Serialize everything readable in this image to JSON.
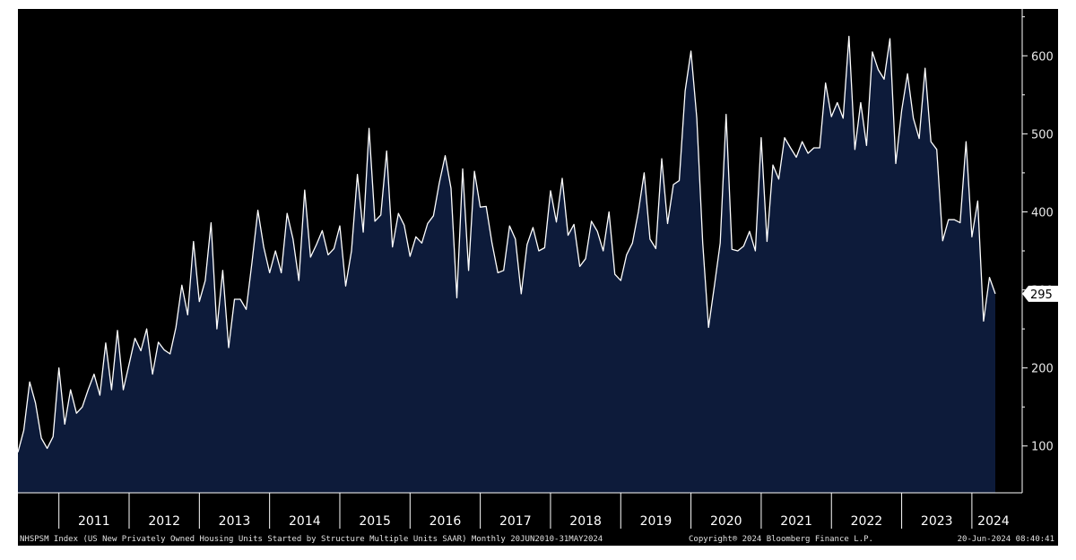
{
  "chart_data": {
    "type": "area",
    "title": "",
    "xlabel": "",
    "ylabel": "",
    "ylim": [
      40,
      660
    ],
    "yticks": [
      100,
      200,
      300,
      400,
      500,
      600
    ],
    "x_range": [
      "2010-06",
      "2024-05"
    ],
    "x_year_labels": [
      "2011",
      "2012",
      "2013",
      "2014",
      "2015",
      "2016",
      "2017",
      "2018",
      "2019",
      "2020",
      "2021",
      "2022",
      "2023",
      "2024"
    ],
    "last_value_label": "295",
    "colors": {
      "background": "#000000",
      "fill": "#0d1b3a",
      "line": "#ffffff",
      "axis": "#ffffff"
    },
    "series": [
      {
        "x": [
          "2010-06",
          "2010-07",
          "2010-08",
          "2010-09",
          "2010-10",
          "2010-11",
          "2010-12",
          "2011-01",
          "2011-02",
          "2011-03",
          "2011-04",
          "2011-05",
          "2011-06",
          "2011-07",
          "2011-08",
          "2011-09",
          "2011-10",
          "2011-11",
          "2011-12",
          "2012-01",
          "2012-02",
          "2012-03",
          "2012-04",
          "2012-05",
          "2012-06",
          "2012-07",
          "2012-08",
          "2012-09",
          "2012-10",
          "2012-11",
          "2012-12",
          "2013-01",
          "2013-02",
          "2013-03",
          "2013-04",
          "2013-05",
          "2013-06",
          "2013-07",
          "2013-08",
          "2013-09",
          "2013-10",
          "2013-11",
          "2013-12",
          "2014-01",
          "2014-02",
          "2014-03",
          "2014-04",
          "2014-05",
          "2014-06",
          "2014-07",
          "2014-08",
          "2014-09",
          "2014-10",
          "2014-11",
          "2014-12",
          "2015-01",
          "2015-02",
          "2015-03",
          "2015-04",
          "2015-05",
          "2015-06",
          "2015-07",
          "2015-08",
          "2015-09",
          "2015-10",
          "2015-11",
          "2015-12",
          "2016-01",
          "2016-02",
          "2016-03",
          "2016-04",
          "2016-05",
          "2016-06",
          "2016-07",
          "2016-08",
          "2016-09",
          "2016-10",
          "2016-11",
          "2016-12",
          "2017-01",
          "2017-02",
          "2017-03",
          "2017-04",
          "2017-05",
          "2017-06",
          "2017-07",
          "2017-08",
          "2017-09",
          "2017-10",
          "2017-11",
          "2017-12",
          "2018-01",
          "2018-02",
          "2018-03",
          "2018-04",
          "2018-05",
          "2018-06",
          "2018-07",
          "2018-08",
          "2018-09",
          "2018-10",
          "2018-11",
          "2018-12",
          "2019-01",
          "2019-02",
          "2019-03",
          "2019-04",
          "2019-05",
          "2019-06",
          "2019-07",
          "2019-08",
          "2019-09",
          "2019-10",
          "2019-11",
          "2019-12",
          "2020-01",
          "2020-02",
          "2020-03",
          "2020-04",
          "2020-05",
          "2020-06",
          "2020-07",
          "2020-08",
          "2020-09",
          "2020-10",
          "2020-11",
          "2020-12",
          "2021-01",
          "2021-02",
          "2021-03",
          "2021-04",
          "2021-05",
          "2021-06",
          "2021-07",
          "2021-08",
          "2021-09",
          "2021-10",
          "2021-11",
          "2021-12",
          "2022-01",
          "2022-02",
          "2022-03",
          "2022-04",
          "2022-05",
          "2022-06",
          "2022-07",
          "2022-08",
          "2022-09",
          "2022-10",
          "2022-11",
          "2022-12",
          "2023-01",
          "2023-02",
          "2023-03",
          "2023-04",
          "2023-05",
          "2023-06",
          "2023-07",
          "2023-08",
          "2023-09",
          "2023-10",
          "2023-11",
          "2023-12",
          "2024-01",
          "2024-02",
          "2024-03",
          "2024-04",
          "2024-05"
        ],
        "values": [
          92,
          120,
          182,
          155,
          110,
          97,
          112,
          200,
          128,
          172,
          142,
          150,
          172,
          192,
          165,
          232,
          172,
          248,
          172,
          205,
          238,
          222,
          250,
          192,
          233,
          223,
          218,
          252,
          306,
          268,
          362,
          285,
          312,
          386,
          250,
          325,
          226,
          288,
          288,
          275,
          336,
          402,
          355,
          322,
          350,
          322,
          398,
          365,
          312,
          428,
          342,
          358,
          376,
          345,
          353,
          382,
          305,
          350,
          448,
          374,
          507,
          388,
          396,
          478,
          355,
          398,
          383,
          343,
          368,
          360,
          385,
          395,
          437,
          472,
          430,
          290,
          455,
          325,
          452,
          406,
          407,
          360,
          322,
          325,
          382,
          365,
          295,
          358,
          380,
          350,
          354,
          427,
          387,
          443,
          370,
          384,
          330,
          340,
          388,
          375,
          350,
          400,
          320,
          312,
          345,
          360,
          400,
          450,
          365,
          353,
          468,
          385,
          435,
          440,
          555,
          606,
          520,
          360,
          252,
          305,
          360,
          525,
          352,
          350,
          356,
          375,
          350,
          495,
          362,
          460,
          442,
          495,
          482,
          470,
          490,
          475,
          482,
          482,
          565,
          522,
          540,
          520,
          625,
          480,
          540,
          485,
          605,
          582,
          570,
          622,
          462,
          530,
          577,
          520,
          494,
          584,
          490,
          480,
          363,
          390,
          390,
          386,
          490,
          368,
          414,
          260,
          316,
          295
        ]
      }
    ],
    "footer": {
      "left": "NHSPSM Index (US New Privately Owned Housing Units Started by Structure Multiple Units SAAR)  Monthly 20JUN2010-31MAY2024",
      "center": "Copyright® 2024 Bloomberg Finance L.P.",
      "right": "20-Jun-2024 08:40:41"
    }
  }
}
